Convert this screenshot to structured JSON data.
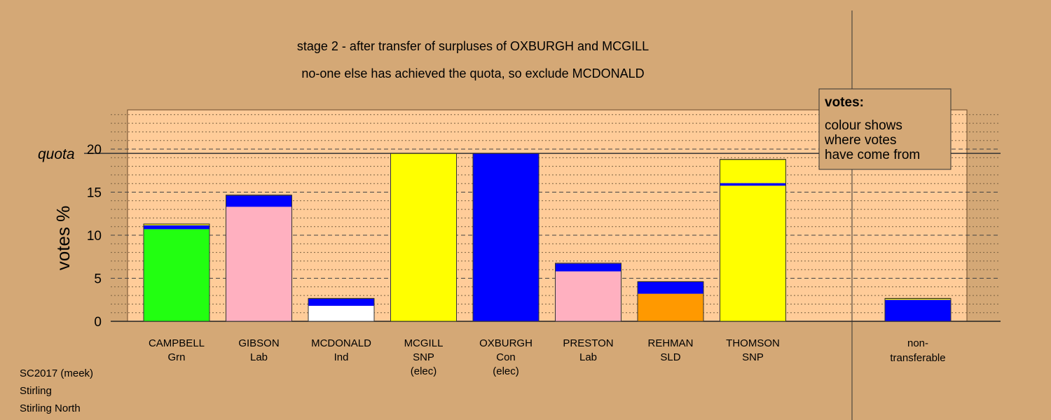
{
  "chart_data": {
    "type": "bar",
    "title": "stage 2 - after transfer of surpluses of OXBURGH and MCGILL",
    "subtitle": "no-one else has achieved the quota, so exclude MCDONALD",
    "ylabel": "votes %",
    "ylim": [
      0,
      24
    ],
    "yticks": [
      "0",
      "5",
      "10",
      "15",
      "20"
    ],
    "quota": 19.5,
    "quota_label": "quota",
    "grid": true,
    "candidates": [
      {
        "name": "CAMPBELL",
        "party": "Grn",
        "note": "",
        "color": "#22FF11",
        "segments": [
          {
            "color": "#22FF11",
            "value": 10.7
          },
          {
            "color": "#0000FF",
            "value": 0.45
          },
          {
            "color": "#FFFF00",
            "value": 0.15
          }
        ]
      },
      {
        "name": "GIBSON",
        "party": "Lab",
        "note": "",
        "color": "#FFB0C0",
        "segments": [
          {
            "color": "#FFB0C0",
            "value": 13.3
          },
          {
            "color": "#0000FF",
            "value": 1.3
          },
          {
            "color": "#FFFF00",
            "value": 0.05
          }
        ]
      },
      {
        "name": "MCDONALD",
        "party": "Ind",
        "note": "",
        "color": "#FFFFFF",
        "segments": [
          {
            "color": "#FFFFFF",
            "value": 1.8
          },
          {
            "color": "#0000FF",
            "value": 0.8
          },
          {
            "color": "#FFFF00",
            "value": 0.05
          }
        ]
      },
      {
        "name": "MCGILL",
        "party": "SNP",
        "note": "(elec)",
        "color": "#FFFF00",
        "segments": [
          {
            "color": "#FFFF00",
            "value": 19.5
          }
        ]
      },
      {
        "name": "OXBURGH",
        "party": "Con",
        "note": "(elec)",
        "color": "#0000FF",
        "segments": [
          {
            "color": "#0000FF",
            "value": 19.5
          }
        ]
      },
      {
        "name": "PRESTON",
        "party": "Lab",
        "note": "",
        "color": "#FFB0C0",
        "segments": [
          {
            "color": "#FFB0C0",
            "value": 5.8
          },
          {
            "color": "#0000FF",
            "value": 0.9
          },
          {
            "color": "#FFFF00",
            "value": 0.05
          }
        ]
      },
      {
        "name": "REHMAN",
        "party": "SLD",
        "note": "",
        "color": "#FF9900",
        "segments": [
          {
            "color": "#FF9900",
            "value": 3.2
          },
          {
            "color": "#0000FF",
            "value": 1.4
          }
        ]
      },
      {
        "name": "THOMSON",
        "party": "SNP",
        "note": "",
        "color": "#FFFF00",
        "segments": [
          {
            "color": "#FFFF00",
            "value": 15.75
          },
          {
            "color": "#0000FF",
            "value": 0.3
          },
          {
            "color": "#FFFF00",
            "value": 2.75
          }
        ]
      }
    ],
    "nontransferable": {
      "line1": "non-",
      "line2": "transferable",
      "segments": [
        {
          "color": "#0000FF",
          "value": 2.5
        },
        {
          "color": "#FFFF00",
          "value": 0.15
        }
      ]
    },
    "legend": {
      "title": "votes:",
      "lines": [
        "colour shows",
        "where votes",
        "have come from"
      ],
      "placement": "top-right"
    }
  },
  "footer": {
    "line1": "SC2017 (meek)",
    "line2": "Stirling",
    "line3": "Stirling North"
  }
}
